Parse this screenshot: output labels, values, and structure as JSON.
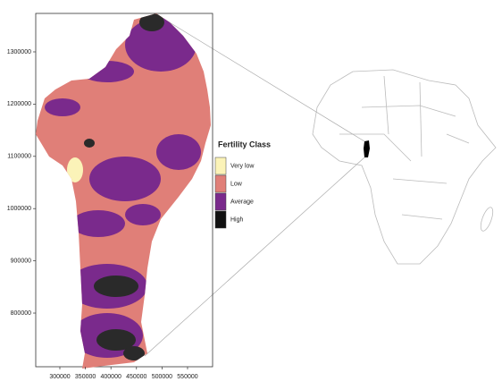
{
  "chart_data": {
    "type": "map",
    "xlim": [
      252800,
      599000
    ],
    "ylim": [
      697300,
      1373600
    ],
    "xticks": [
      300000,
      350000,
      400000,
      450000,
      500000,
      550000
    ],
    "yticks": [
      800000,
      900000,
      1000000,
      1100000,
      1200000,
      1300000
    ],
    "legend": {
      "title": "Fertility Class",
      "items": [
        {
          "name": "Very low",
          "color": "#fbf3b8"
        },
        {
          "name": "Low",
          "color": "#e07f78"
        },
        {
          "name": "Average",
          "color": "#7a2a8c"
        },
        {
          "name": "High",
          "color": "#111111"
        }
      ]
    }
  }
}
